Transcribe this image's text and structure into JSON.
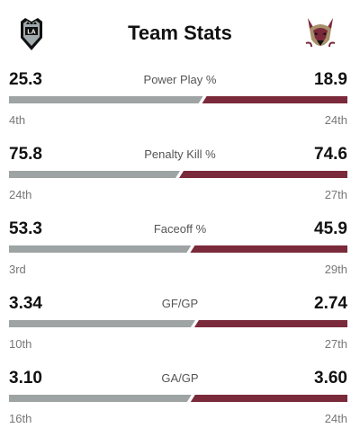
{
  "header": {
    "title": "Team Stats",
    "home_logo_text": "LA",
    "away_logo_icon": "coyote-head-icon"
  },
  "colors": {
    "home_bar": "#9ea3a4",
    "away_bar": "#7a2a3a"
  },
  "stats": [
    {
      "label": "Power Play %",
      "left_value": "25.3",
      "right_value": "18.9",
      "left_share": 0.572,
      "left_rank": "4th",
      "right_rank": "24th"
    },
    {
      "label": "Penalty Kill %",
      "left_value": "75.8",
      "right_value": "74.6",
      "left_share": 0.504,
      "left_rank": "24th",
      "right_rank": "27th"
    },
    {
      "label": "Faceoff %",
      "left_value": "53.3",
      "right_value": "45.9",
      "left_share": 0.537,
      "left_rank": "3rd",
      "right_rank": "29th"
    },
    {
      "label": "GF/GP",
      "left_value": "3.34",
      "right_value": "2.74",
      "left_share": 0.549,
      "left_rank": "10th",
      "right_rank": "27th"
    },
    {
      "label": "GA/GP",
      "left_value": "3.10",
      "right_value": "3.60",
      "left_share": 0.538,
      "left_rank": "16th",
      "right_rank": "24th"
    }
  ]
}
